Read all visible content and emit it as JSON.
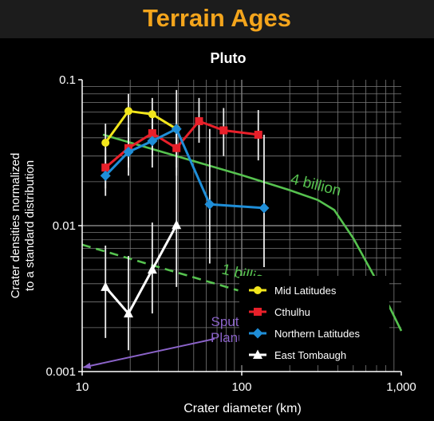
{
  "header": {
    "title": "Terrain Ages"
  },
  "chart_data": {
    "type": "scatter",
    "title": "Pluto",
    "xlabel": "Crater diameter (km)",
    "ylabel_line1": "Crater densities normalized",
    "ylabel_line2": "to a standard distribution",
    "x_scale": "log",
    "y_scale": "log",
    "xlim": [
      10,
      1000
    ],
    "ylim": [
      0.001,
      0.1
    ],
    "x_ticks": [
      10,
      100,
      1000
    ],
    "x_tick_labels": [
      "10",
      "100",
      "1,000"
    ],
    "y_ticks": [
      0.001,
      0.01,
      0.1
    ],
    "y_tick_labels": [
      "0.001",
      "0.01",
      "0.1"
    ],
    "grid": true,
    "legend_position": "bottom-right",
    "series": [
      {
        "name": "Mid Latitudes",
        "color": "#f2e61c",
        "marker": "circle",
        "x": [
          14,
          19.5,
          27.5,
          39
        ],
        "y": [
          0.037,
          0.061,
          0.058,
          0.046
        ],
        "err_low": [
          0.028,
          0.045,
          0.044,
          0.034
        ],
        "err_high": [
          0.05,
          0.08,
          0.075,
          0.06
        ]
      },
      {
        "name": "Cthulhu",
        "color": "#e8202a",
        "marker": "square",
        "x": [
          14,
          19.5,
          27.5,
          39,
          54,
          77,
          127
        ],
        "y": [
          0.025,
          0.034,
          0.043,
          0.034,
          0.052,
          0.045,
          0.042
        ],
        "err_low": [
          0.018,
          0.025,
          0.03,
          0.022,
          0.037,
          0.03,
          0.028
        ],
        "err_high": [
          0.034,
          0.047,
          0.06,
          0.05,
          0.075,
          0.064,
          0.062
        ]
      },
      {
        "name": "Northern Latitudes",
        "color": "#1f8ed8",
        "marker": "diamond",
        "x": [
          14,
          19.5,
          27.5,
          39,
          63,
          138
        ],
        "y": [
          0.022,
          0.032,
          0.038,
          0.046,
          0.014,
          0.0132
        ],
        "err_low": [
          0.016,
          0.022,
          0.025,
          0.025,
          0.0055,
          0.0052
        ],
        "err_high": [
          0.03,
          0.047,
          0.06,
          0.085,
          0.046,
          0.042
        ]
      },
      {
        "name": "East Tombaugh",
        "color": "#ffffff",
        "marker": "triangle",
        "x": [
          14,
          19.5,
          27.5,
          39
        ],
        "y": [
          0.0038,
          0.0025,
          0.005,
          0.0101
        ],
        "err_low": [
          0.0017,
          0.0014,
          0.0025,
          0.0038
        ],
        "err_high": [
          0.0073,
          0.0062,
          0.0105,
          0.044
        ]
      }
    ],
    "isochrons": [
      {
        "label": "4 billion",
        "color": "#56c24f",
        "style": "solid",
        "label_x": 200,
        "label_y": 0.0195,
        "x": [
          13.5,
          100,
          200,
          300,
          380,
          500,
          700,
          1000
        ],
        "y": [
          0.042,
          0.0222,
          0.0175,
          0.015,
          0.0128,
          0.0082,
          0.0042,
          0.0019
        ]
      },
      {
        "label": "1 billion",
        "color": "#56c24f",
        "style": "dashed",
        "label_x": 74,
        "label_y": 0.0047,
        "x": [
          10,
          95
        ],
        "y": [
          0.0074,
          0.0036
        ]
      }
    ],
    "annotation": {
      "lines": [
        "Sputnik",
        "Planum"
      ],
      "color": "#8b63c9",
      "arrow_to": [
        10.2,
        0.00107
      ],
      "text_at": [
        89,
        0.00205
      ]
    }
  }
}
